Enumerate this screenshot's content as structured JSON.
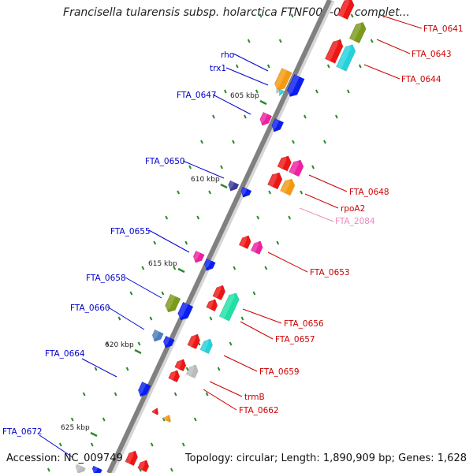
{
  "title": "Francisella tularensis subsp. holarctica FTNF002-00, complet...",
  "accession": "Accession: NC_009749",
  "summary": "Topology: circular; Length: 1,890,909 bp; Genes: 1,628",
  "colors": {
    "forward_label": "#0000cc",
    "reverse_label": "#cc0000",
    "rna_label": "#ee88bb",
    "backbone": "#808080",
    "tick": "#2a8a2a"
  },
  "ticks": [
    "605 kbp",
    "610 kbp",
    "615 kbp",
    "620 kbp",
    "625 kbp"
  ],
  "forward_labels": [
    "rho",
    "trx1",
    "FTA_0647",
    "FTA_0650",
    "FTA_0655",
    "FTA_0658",
    "FTA_0660",
    "FTA_0664",
    "FTA_0672"
  ],
  "reverse_labels": [
    "FTA_0641",
    "FTA_0643",
    "FTA_0644",
    "FTA_0648",
    "rpoA2",
    "FTA_2084",
    "FTA_0653",
    "FTA_0656",
    "FTA_0657",
    "FTA_0659",
    "trmB",
    "FTA_0662"
  ],
  "gene_colors": [
    "orange",
    "cyan",
    "blue",
    "magenta",
    "navy",
    "red",
    "olive",
    "steel-blue",
    "grey",
    "green-cyan"
  ]
}
